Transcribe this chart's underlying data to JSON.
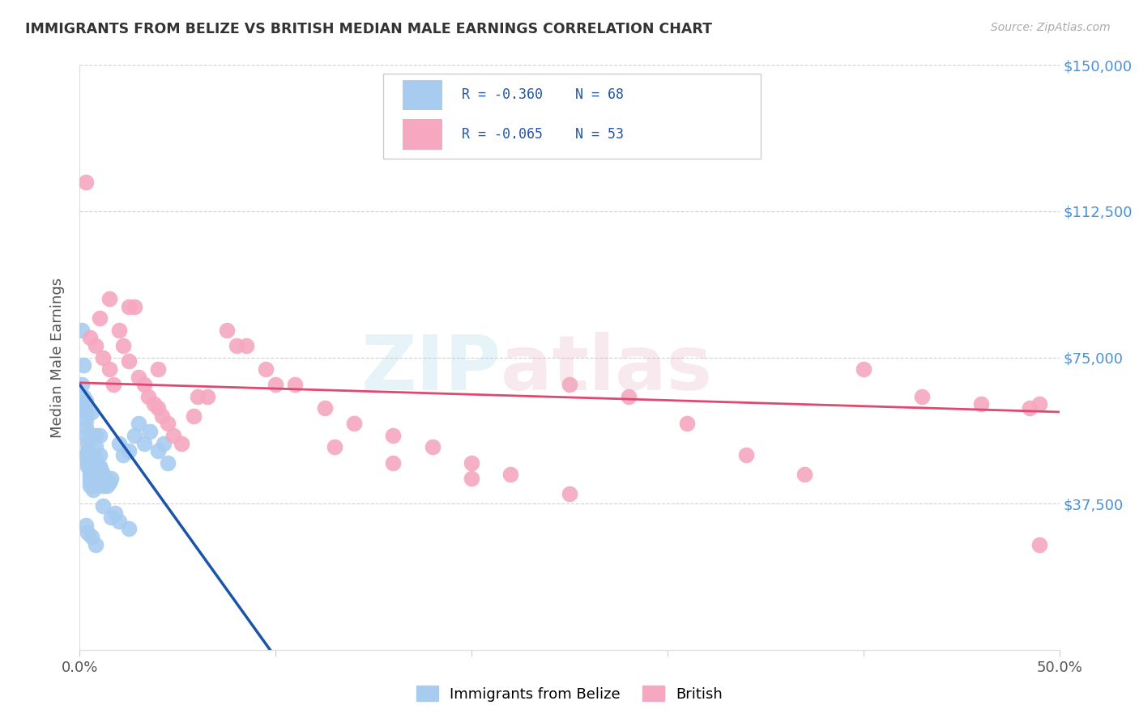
{
  "title": "IMMIGRANTS FROM BELIZE VS BRITISH MEDIAN MALE EARNINGS CORRELATION CHART",
  "source": "Source: ZipAtlas.com",
  "ylabel": "Median Male Earnings",
  "xlim": [
    0.0,
    0.5
  ],
  "ylim": [
    0,
    150000
  ],
  "yticks": [
    0,
    37500,
    75000,
    112500,
    150000
  ],
  "ytick_labels": [
    "",
    "$37,500",
    "$75,000",
    "$112,500",
    "$150,000"
  ],
  "xticks": [
    0.0,
    0.1,
    0.2,
    0.3,
    0.4,
    0.5
  ],
  "xtick_labels": [
    "0.0%",
    "",
    "",
    "",
    "",
    "50.0%"
  ],
  "legend_labels": [
    "Immigrants from Belize",
    "British"
  ],
  "R_belize": -0.36,
  "N_belize": 68,
  "R_british": -0.065,
  "N_british": 53,
  "scatter_color_belize": "#a8ccf0",
  "scatter_color_british": "#f5a8c0",
  "line_color_belize": "#1a55aa",
  "line_color_british": "#e04870",
  "line_color_dashed": "#b0b0b0",
  "background_color": "#ffffff",
  "belize_x": [
    0.001,
    0.001,
    0.002,
    0.002,
    0.002,
    0.003,
    0.003,
    0.003,
    0.003,
    0.003,
    0.004,
    0.004,
    0.004,
    0.004,
    0.004,
    0.005,
    0.005,
    0.005,
    0.005,
    0.005,
    0.006,
    0.006,
    0.006,
    0.006,
    0.007,
    0.007,
    0.007,
    0.007,
    0.008,
    0.008,
    0.008,
    0.009,
    0.009,
    0.009,
    0.01,
    0.01,
    0.01,
    0.011,
    0.011,
    0.012,
    0.012,
    0.013,
    0.014,
    0.015,
    0.016,
    0.018,
    0.02,
    0.022,
    0.025,
    0.028,
    0.03,
    0.033,
    0.036,
    0.04,
    0.043,
    0.045,
    0.003,
    0.005,
    0.007,
    0.009,
    0.012,
    0.016,
    0.02,
    0.025,
    0.003,
    0.004,
    0.006,
    0.008
  ],
  "belize_y": [
    82000,
    68000,
    73000,
    65000,
    62000,
    64000,
    61000,
    59000,
    57000,
    55000,
    53000,
    51000,
    49000,
    48000,
    47000,
    46000,
    45000,
    44000,
    43000,
    42000,
    61000,
    55000,
    50000,
    46000,
    44000,
    43000,
    42000,
    41000,
    55000,
    52000,
    49000,
    47000,
    45000,
    44000,
    55000,
    50000,
    47000,
    46000,
    44000,
    45000,
    42000,
    44000,
    42000,
    43000,
    44000,
    35000,
    53000,
    50000,
    51000,
    55000,
    58000,
    53000,
    56000,
    51000,
    53000,
    48000,
    50000,
    48000,
    46000,
    44000,
    37000,
    34000,
    33000,
    31000,
    32000,
    30000,
    29000,
    27000
  ],
  "british_x": [
    0.003,
    0.005,
    0.008,
    0.01,
    0.012,
    0.015,
    0.017,
    0.02,
    0.022,
    0.025,
    0.028,
    0.03,
    0.033,
    0.035,
    0.038,
    0.04,
    0.042,
    0.045,
    0.048,
    0.052,
    0.058,
    0.065,
    0.075,
    0.085,
    0.095,
    0.11,
    0.125,
    0.14,
    0.16,
    0.18,
    0.2,
    0.22,
    0.25,
    0.28,
    0.31,
    0.34,
    0.37,
    0.4,
    0.43,
    0.46,
    0.485,
    0.49,
    0.015,
    0.025,
    0.04,
    0.06,
    0.08,
    0.1,
    0.13,
    0.16,
    0.2,
    0.25,
    0.49
  ],
  "british_y": [
    120000,
    80000,
    78000,
    85000,
    75000,
    72000,
    68000,
    82000,
    78000,
    74000,
    88000,
    70000,
    68000,
    65000,
    63000,
    62000,
    60000,
    58000,
    55000,
    53000,
    60000,
    65000,
    82000,
    78000,
    72000,
    68000,
    62000,
    58000,
    55000,
    52000,
    48000,
    45000,
    68000,
    65000,
    58000,
    50000,
    45000,
    72000,
    65000,
    63000,
    62000,
    27000,
    90000,
    88000,
    72000,
    65000,
    78000,
    68000,
    52000,
    48000,
    44000,
    40000,
    63000
  ],
  "belize_line_x0": 0.0,
  "belize_line_x1": 0.2,
  "belize_line_slope": -700000,
  "belize_line_intercept": 68000,
  "british_line_slope": -15000,
  "british_line_intercept": 68500
}
